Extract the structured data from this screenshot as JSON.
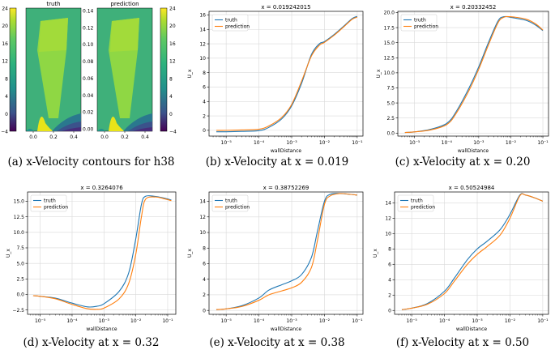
{
  "colors": {
    "truth": "#1f77b4",
    "prediction": "#ff7f0e",
    "grid": "#d9d9d9",
    "axis": "#000000"
  },
  "figure_a": {
    "left_title": "truth",
    "right_title": "prediction",
    "left_x_ticks": [
      "0.0",
      "0.2",
      "0.4"
    ],
    "right_x_ticks": [
      "0.0",
      "0.2",
      "0.4"
    ],
    "left_colorbar_ticks": [
      "24",
      "20",
      "16",
      "12",
      "8",
      "4",
      "0",
      "−4"
    ],
    "right_colorbar_ticks": [
      "24",
      "20",
      "16",
      "12",
      "8",
      "4",
      "0",
      "−4"
    ],
    "left_y_ticks": [
      "0.14",
      "0.12",
      "0.10",
      "0.08",
      "0.06",
      "0.04",
      "0.02",
      "0.00"
    ],
    "caption": "(a) x-Velocity contours for h38"
  },
  "chart_data": [
    {
      "type": "line",
      "title": "x = 0.019242015",
      "xlabel": "wallDistance",
      "ylabel": "U_x",
      "xscale": "log",
      "xlim": [
        3e-06,
        0.15
      ],
      "ylim": [
        -0.8,
        16.5
      ],
      "grid": true,
      "legend": "top-left",
      "y_ticks": [
        0,
        2,
        4,
        6,
        8,
        10,
        12,
        14,
        16
      ],
      "x_tick_labels": [
        "10⁻⁵",
        "10⁻⁴",
        "10⁻³",
        "10⁻²",
        "10⁻¹"
      ],
      "x_tick_values": [
        1e-05,
        0.0001,
        0.001,
        0.01,
        0.1
      ],
      "series": [
        {
          "name": "truth",
          "x": [
            5e-06,
            1e-05,
            3e-05,
            0.0001,
            0.0002,
            0.0005,
            0.001,
            0.002,
            0.004,
            0.007,
            0.01,
            0.02,
            0.04,
            0.07,
            0.1
          ],
          "y": [
            -0.2,
            -0.2,
            -0.15,
            -0.05,
            0.4,
            1.6,
            3.4,
            6.5,
            10.5,
            12.0,
            12.3,
            13.3,
            14.5,
            15.5,
            15.8
          ]
        },
        {
          "name": "prediction",
          "x": [
            5e-06,
            1e-05,
            3e-05,
            0.0001,
            0.0002,
            0.0005,
            0.001,
            0.002,
            0.004,
            0.007,
            0.01,
            0.02,
            0.04,
            0.07,
            0.1
          ],
          "y": [
            0.0,
            0.0,
            0.05,
            0.15,
            0.6,
            1.8,
            3.6,
            6.8,
            10.3,
            11.8,
            12.2,
            13.2,
            14.4,
            15.4,
            15.7
          ]
        }
      ],
      "caption": "(b) x-Velocity at x = 0.019"
    },
    {
      "type": "line",
      "title": "x = 0.20332452",
      "xlabel": "wallDistance",
      "ylabel": "U_x",
      "xscale": "log",
      "xlim": [
        3e-06,
        0.15
      ],
      "ylim": [
        -0.5,
        20.2
      ],
      "grid": true,
      "legend": "top-left",
      "y_ticks": [
        0.0,
        2.5,
        5.0,
        7.5,
        10.0,
        12.5,
        15.0,
        17.5,
        20.0
      ],
      "y_tick_labels": [
        "0.0",
        "2.5",
        "5.0",
        "7.5",
        "10.0",
        "12.5",
        "15.0",
        "17.5",
        "20.0"
      ],
      "x_tick_labels": [
        "10⁻⁵",
        "10⁻⁴",
        "10⁻³",
        "10⁻²",
        "10⁻¹"
      ],
      "x_tick_values": [
        1e-05,
        0.0001,
        0.001,
        0.01,
        0.1
      ],
      "series": [
        {
          "name": "truth",
          "x": [
            5e-06,
            1e-05,
            3e-05,
            0.0001,
            0.0002,
            0.0005,
            0.001,
            0.002,
            0.004,
            0.006,
            0.01,
            0.03,
            0.06,
            0.1
          ],
          "y": [
            0.1,
            0.2,
            0.6,
            1.6,
            3.6,
            7.5,
            11.0,
            15.0,
            18.6,
            19.3,
            19.2,
            18.7,
            17.9,
            17.0
          ]
        },
        {
          "name": "prediction",
          "x": [
            5e-06,
            1e-05,
            3e-05,
            0.0001,
            0.0002,
            0.0005,
            0.001,
            0.002,
            0.004,
            0.006,
            0.01,
            0.03,
            0.06,
            0.1
          ],
          "y": [
            0.1,
            0.2,
            0.5,
            1.4,
            3.3,
            7.1,
            10.6,
            14.6,
            18.3,
            19.2,
            19.3,
            18.9,
            18.1,
            17.1
          ]
        }
      ],
      "caption": "(c) x-Velocity at x = 0.20"
    },
    {
      "type": "line",
      "title": "x = 0.3264076",
      "xlabel": "wallDistance",
      "ylabel": "U_x",
      "xscale": "log",
      "xlim": [
        4e-06,
        0.18
      ],
      "ylim": [
        -3.2,
        16.5
      ],
      "grid": true,
      "legend": "top-left",
      "y_ticks": [
        -2.5,
        0.0,
        2.5,
        5.0,
        7.5,
        10.0,
        12.5,
        15.0
      ],
      "y_tick_labels": [
        "−2.5",
        "0.0",
        "2.5",
        "5.0",
        "7.5",
        "10.0",
        "12.5",
        "15.0"
      ],
      "x_tick_labels": [
        "10⁻⁵",
        "10⁻⁴",
        "10⁻³",
        "10⁻²",
        "10⁻¹"
      ],
      "x_tick_values": [
        1e-05,
        0.0001,
        0.001,
        0.01,
        0.1
      ],
      "series": [
        {
          "name": "truth",
          "x": [
            6e-06,
            1e-05,
            3e-05,
            0.0001,
            0.0003,
            0.0006,
            0.001,
            0.003,
            0.006,
            0.01,
            0.015,
            0.02,
            0.04,
            0.08,
            0.13
          ],
          "y": [
            -0.2,
            -0.3,
            -0.6,
            -1.4,
            -2.0,
            -1.9,
            -1.5,
            0.5,
            3.5,
            9.0,
            14.5,
            15.8,
            15.8,
            15.5,
            15.2
          ]
        },
        {
          "name": "prediction",
          "x": [
            6e-06,
            1e-05,
            3e-05,
            0.0001,
            0.0003,
            0.0006,
            0.001,
            0.003,
            0.006,
            0.01,
            0.015,
            0.02,
            0.04,
            0.08,
            0.13
          ],
          "y": [
            -0.2,
            -0.3,
            -0.7,
            -1.6,
            -2.3,
            -2.4,
            -2.2,
            -0.7,
            1.8,
            6.5,
            12.5,
            15.3,
            15.7,
            15.4,
            15.1
          ]
        }
      ],
      "caption": "(d) x-Velocity at x = 0.32"
    },
    {
      "type": "line",
      "title": "x = 0.38752269",
      "xlabel": "wallDistance",
      "ylabel": "U_x",
      "xscale": "log",
      "xlim": [
        3e-06,
        0.15
      ],
      "ylim": [
        -0.5,
        15.2
      ],
      "grid": true,
      "legend": "top-left",
      "y_ticks": [
        0,
        2,
        4,
        6,
        8,
        10,
        12,
        14
      ],
      "x_tick_labels": [
        "10⁻⁵",
        "10⁻⁴",
        "10⁻³",
        "10⁻²",
        "10⁻¹"
      ],
      "x_tick_values": [
        1e-05,
        0.0001,
        0.001,
        0.01,
        0.1
      ],
      "series": [
        {
          "name": "truth",
          "x": [
            5e-06,
            1e-05,
            3e-05,
            0.0001,
            0.0002,
            0.0005,
            0.001,
            0.002,
            0.004,
            0.006,
            0.01,
            0.015,
            0.03,
            0.06,
            0.1
          ],
          "y": [
            0.1,
            0.2,
            0.6,
            1.6,
            2.6,
            3.3,
            3.8,
            4.6,
            6.8,
            10.0,
            14.0,
            14.9,
            15.0,
            14.9,
            14.8
          ]
        },
        {
          "name": "prediction",
          "x": [
            5e-06,
            1e-05,
            3e-05,
            0.0001,
            0.0002,
            0.0005,
            0.001,
            0.002,
            0.004,
            0.006,
            0.01,
            0.015,
            0.03,
            0.06,
            0.1
          ],
          "y": [
            0.1,
            0.2,
            0.5,
            1.3,
            2.0,
            2.5,
            2.9,
            3.6,
            5.5,
            8.8,
            13.6,
            14.7,
            15.0,
            14.9,
            14.8
          ]
        }
      ],
      "caption": "(e) x-Velocity at x = 0.38"
    },
    {
      "type": "line",
      "title": "x = 0.50524984",
      "xlabel": "wallDistance",
      "ylabel": "U_x",
      "xscale": "log",
      "xlim": [
        3e-06,
        0.15
      ],
      "ylim": [
        -0.5,
        15.4
      ],
      "grid": true,
      "legend": "top-left",
      "y_ticks": [
        0,
        2,
        4,
        6,
        8,
        10,
        12,
        14
      ],
      "x_tick_labels": [
        "10⁻⁵",
        "10⁻⁴",
        "10⁻³",
        "10⁻²",
        "10⁻¹"
      ],
      "x_tick_values": [
        1e-05,
        0.0001,
        0.001,
        0.01,
        0.1
      ],
      "series": [
        {
          "name": "truth",
          "x": [
            5e-06,
            1e-05,
            3e-05,
            0.0001,
            0.0002,
            0.0005,
            0.001,
            0.002,
            0.005,
            0.01,
            0.02,
            0.03,
            0.06,
            0.1
          ],
          "y": [
            0.1,
            0.3,
            0.9,
            2.5,
            4.2,
            6.6,
            8.0,
            9.0,
            10.5,
            12.5,
            15.0,
            15.0,
            14.6,
            14.2
          ]
        },
        {
          "name": "prediction",
          "x": [
            5e-06,
            1e-05,
            3e-05,
            0.0001,
            0.0002,
            0.0005,
            0.001,
            0.002,
            0.005,
            0.01,
            0.02,
            0.03,
            0.06,
            0.1
          ],
          "y": [
            0.1,
            0.3,
            0.8,
            2.2,
            3.8,
            6.0,
            7.3,
            8.3,
            9.8,
            12.0,
            14.9,
            15.0,
            14.6,
            14.2
          ]
        }
      ],
      "caption": "(f) x-Velocity at x = 0.50"
    }
  ]
}
